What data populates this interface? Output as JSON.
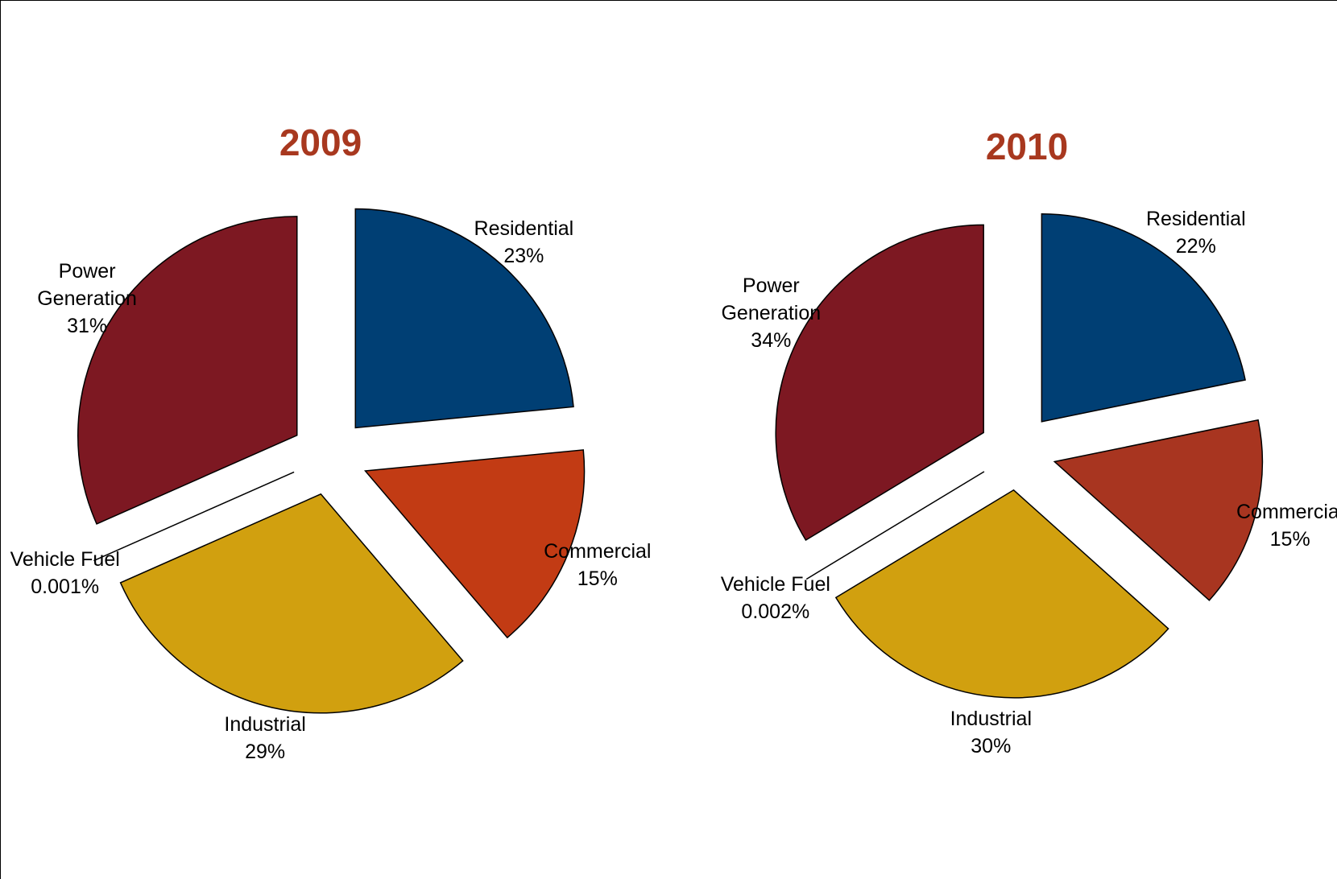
{
  "chart_data": [
    {
      "type": "pie",
      "title": "2009",
      "categories": [
        "Residential",
        "Commercial",
        "Industrial",
        "Vehicle Fuel",
        "Power Generation"
      ],
      "values": [
        23,
        15,
        29,
        0.001,
        31
      ],
      "value_labels": [
        "23%",
        "15%",
        "29%",
        "0.001%",
        "31%"
      ],
      "colors": [
        "#003f74",
        "#c23b14",
        "#d1a00f",
        "#000000",
        "#7d1822"
      ]
    },
    {
      "type": "pie",
      "title": "2010",
      "categories": [
        "Residential",
        "Commercial",
        "Industrial",
        "Vehicle Fuel",
        "Power Generation"
      ],
      "values": [
        22,
        15,
        30,
        0.002,
        34
      ],
      "value_labels": [
        "22%",
        "15%",
        "30%",
        "0.002%",
        "34%"
      ],
      "colors": [
        "#003f74",
        "#a83520",
        "#d1a00f",
        "#000000",
        "#7d1822"
      ]
    }
  ]
}
